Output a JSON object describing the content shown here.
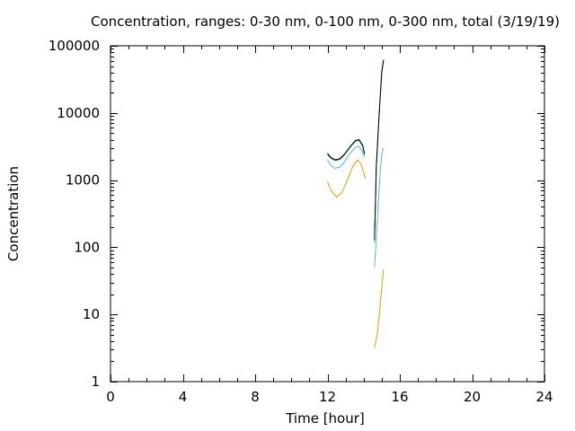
{
  "chart_data": {
    "type": "line",
    "title": "Concentration, ranges: 0-30 nm, 0-100 nm, 0-300 nm, total (3/19/19)",
    "xlabel": "Time [hour]",
    "ylabel": "Concentration",
    "xlim": [
      0,
      24
    ],
    "ylim": [
      1,
      100000
    ],
    "yscale": "log",
    "grid": false,
    "x_ticks": [
      0,
      4,
      8,
      12,
      16,
      20,
      24
    ],
    "x_tick_labels": [
      "0",
      "4",
      "8",
      "12",
      "16",
      "20",
      "24"
    ],
    "y_ticks": [
      1,
      10,
      100,
      1000,
      10000,
      100000
    ],
    "y_tick_labels": [
      "1",
      "10",
      "100",
      "1000",
      "10000",
      "100000"
    ],
    "series": [
      {
        "color": "#e0a000",
        "segments": [
          [
            [
              12.0,
              950
            ],
            [
              12.2,
              700
            ],
            [
              12.5,
              560
            ],
            [
              12.8,
              650
            ],
            [
              13.1,
              1000
            ],
            [
              13.4,
              1600
            ],
            [
              13.65,
              2000
            ],
            [
              13.85,
              1750
            ],
            [
              14.0,
              1300
            ],
            [
              14.1,
              1050
            ]
          ],
          [
            [
              14.6,
              3.2
            ],
            [
              14.75,
              5
            ],
            [
              14.85,
              9
            ],
            [
              14.95,
              18
            ],
            [
              15.05,
              35
            ],
            [
              15.1,
              47
            ]
          ]
        ]
      },
      {
        "color": "#55b4e9",
        "segments": [
          [
            [
              12.0,
              2000
            ],
            [
              12.2,
              1650
            ],
            [
              12.4,
              1500
            ],
            [
              12.65,
              1550
            ],
            [
              12.9,
              1800
            ],
            [
              13.2,
              2400
            ],
            [
              13.5,
              3000
            ],
            [
              13.7,
              3200
            ],
            [
              13.9,
              2800
            ],
            [
              14.05,
              2200
            ]
          ],
          [
            [
              14.6,
              50
            ],
            [
              14.7,
              130
            ],
            [
              14.8,
              400
            ],
            [
              14.9,
              1200
            ],
            [
              15.0,
              2500
            ],
            [
              15.1,
              3000
            ]
          ]
        ]
      },
      {
        "color": "#009e74",
        "segments": [
          [
            [
              12.0,
              2400
            ],
            [
              12.2,
              2100
            ],
            [
              12.45,
              1950
            ],
            [
              12.7,
              2050
            ],
            [
              12.95,
              2400
            ],
            [
              13.25,
              3100
            ],
            [
              13.55,
              3800
            ],
            [
              13.75,
              3900
            ],
            [
              13.95,
              3200
            ],
            [
              14.05,
              2400
            ]
          ],
          [
            [
              14.6,
              120
            ],
            [
              14.65,
              400
            ],
            [
              14.7,
              1500
            ],
            [
              14.8,
              5000
            ],
            [
              14.9,
              15000
            ],
            [
              15.0,
              40000
            ],
            [
              15.1,
              60000
            ]
          ]
        ]
      },
      {
        "color": "#000000",
        "segments": [
          [
            [
              12.0,
              2500
            ],
            [
              12.2,
              2150
            ],
            [
              12.45,
              2000
            ],
            [
              12.7,
              2100
            ],
            [
              12.95,
              2450
            ],
            [
              13.25,
              3150
            ],
            [
              13.55,
              3900
            ],
            [
              13.75,
              4000
            ],
            [
              13.95,
              3300
            ],
            [
              14.05,
              2450
            ]
          ],
          [
            [
              14.6,
              130
            ],
            [
              14.65,
              420
            ],
            [
              14.7,
              1550
            ],
            [
              14.8,
              5200
            ],
            [
              14.9,
              15500
            ],
            [
              15.0,
              41000
            ],
            [
              15.1,
              62000
            ]
          ]
        ]
      }
    ]
  }
}
